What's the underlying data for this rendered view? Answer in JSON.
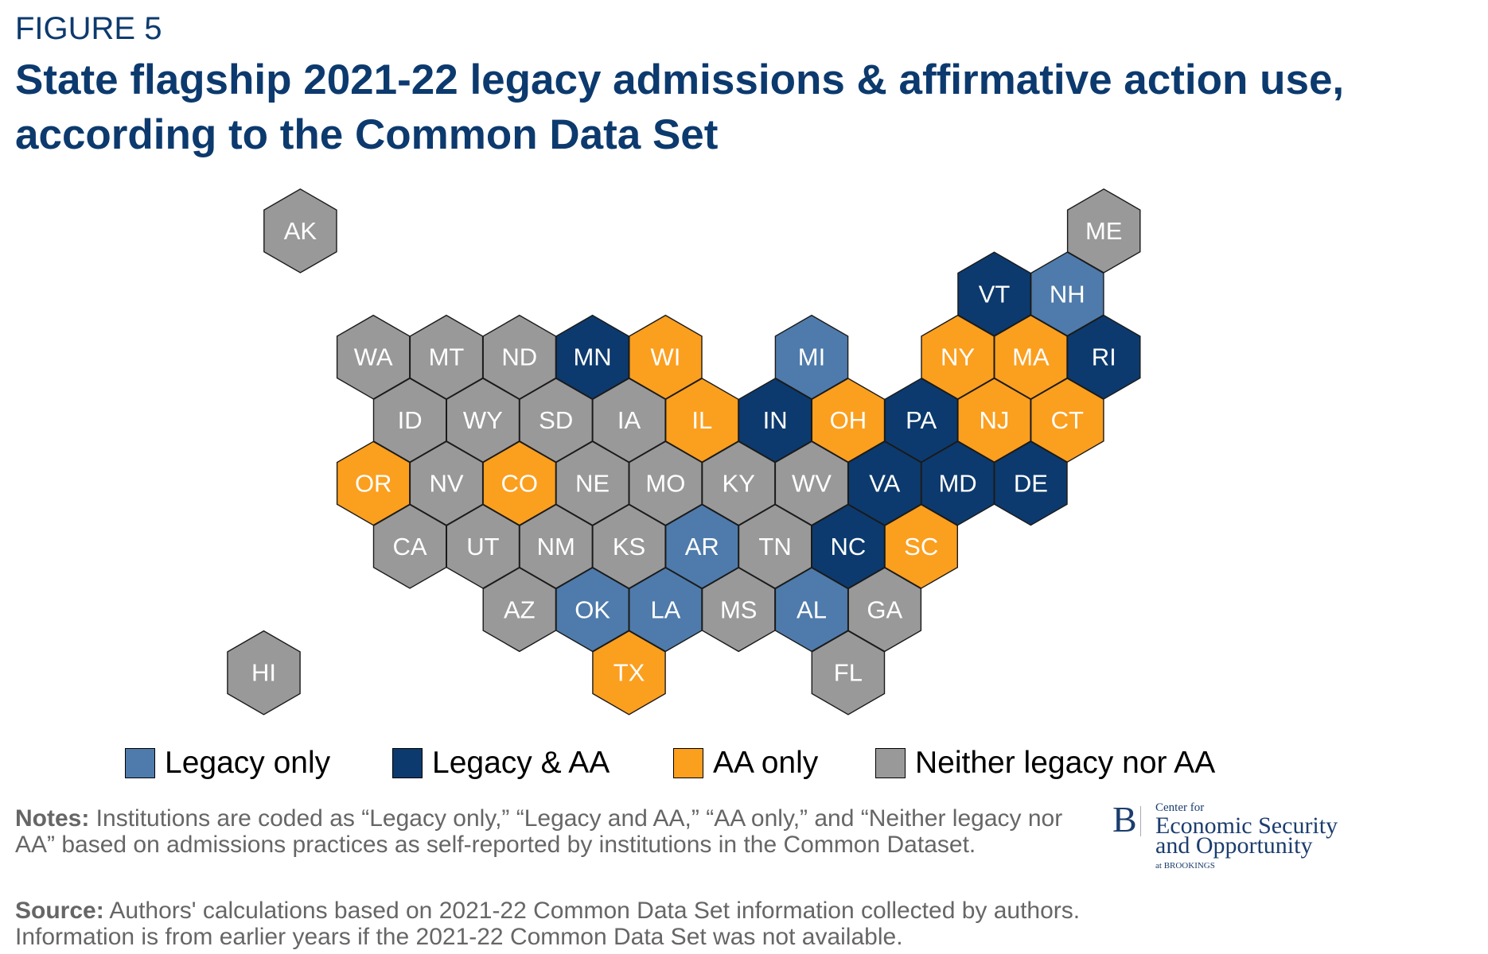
{
  "figure_label": "FIGURE 5",
  "title_line1": "State flagship 2021-22 legacy admissions & affirmative action use,",
  "title_line2": "according to the Common Data Set",
  "colors": {
    "legacy_only": "#4e7bab",
    "legacy_aa": "#0c3a6e",
    "aa_only": "#fb9f1f",
    "neither": "#999999",
    "title": "#0c3a6e"
  },
  "legend": [
    {
      "key": "legacy_only",
      "label": "Legacy only"
    },
    {
      "key": "legacy_aa",
      "label": "Legacy & AA"
    },
    {
      "key": "aa_only",
      "label": "AA only"
    },
    {
      "key": "neither",
      "label": "Neither legacy nor AA"
    }
  ],
  "states": [
    {
      "abbr": "AK",
      "row": 0,
      "col": -1,
      "cat": "neither"
    },
    {
      "abbr": "ME",
      "row": 0,
      "col": 10,
      "cat": "neither"
    },
    {
      "abbr": "VT",
      "row": 1,
      "col": 8,
      "cat": "legacy_aa"
    },
    {
      "abbr": "NH",
      "row": 1,
      "col": 9,
      "cat": "legacy_only"
    },
    {
      "abbr": "WA",
      "row": 2,
      "col": 0,
      "cat": "neither"
    },
    {
      "abbr": "MT",
      "row": 2,
      "col": 1,
      "cat": "neither"
    },
    {
      "abbr": "ND",
      "row": 2,
      "col": 2,
      "cat": "neither"
    },
    {
      "abbr": "MN",
      "row": 2,
      "col": 3,
      "cat": "legacy_aa"
    },
    {
      "abbr": "WI",
      "row": 2,
      "col": 4,
      "cat": "aa_only"
    },
    {
      "abbr": "MI",
      "row": 2,
      "col": 6,
      "cat": "legacy_only"
    },
    {
      "abbr": "NY",
      "row": 2,
      "col": 8,
      "cat": "aa_only"
    },
    {
      "abbr": "MA",
      "row": 2,
      "col": 9,
      "cat": "aa_only"
    },
    {
      "abbr": "RI",
      "row": 2,
      "col": 10,
      "cat": "legacy_aa"
    },
    {
      "abbr": "ID",
      "row": 3,
      "col": 0,
      "cat": "neither"
    },
    {
      "abbr": "WY",
      "row": 3,
      "col": 1,
      "cat": "neither"
    },
    {
      "abbr": "SD",
      "row": 3,
      "col": 2,
      "cat": "neither"
    },
    {
      "abbr": "IA",
      "row": 3,
      "col": 3,
      "cat": "neither"
    },
    {
      "abbr": "IL",
      "row": 3,
      "col": 4,
      "cat": "aa_only"
    },
    {
      "abbr": "IN",
      "row": 3,
      "col": 5,
      "cat": "legacy_aa"
    },
    {
      "abbr": "OH",
      "row": 3,
      "col": 6,
      "cat": "aa_only"
    },
    {
      "abbr": "PA",
      "row": 3,
      "col": 7,
      "cat": "legacy_aa"
    },
    {
      "abbr": "NJ",
      "row": 3,
      "col": 8,
      "cat": "aa_only"
    },
    {
      "abbr": "CT",
      "row": 3,
      "col": 9,
      "cat": "aa_only"
    },
    {
      "abbr": "OR",
      "row": 4,
      "col": 0,
      "cat": "aa_only"
    },
    {
      "abbr": "NV",
      "row": 4,
      "col": 1,
      "cat": "neither"
    },
    {
      "abbr": "CO",
      "row": 4,
      "col": 2,
      "cat": "aa_only"
    },
    {
      "abbr": "NE",
      "row": 4,
      "col": 3,
      "cat": "neither"
    },
    {
      "abbr": "MO",
      "row": 4,
      "col": 4,
      "cat": "neither"
    },
    {
      "abbr": "KY",
      "row": 4,
      "col": 5,
      "cat": "neither"
    },
    {
      "abbr": "WV",
      "row": 4,
      "col": 6,
      "cat": "neither"
    },
    {
      "abbr": "VA",
      "row": 4,
      "col": 7,
      "cat": "legacy_aa"
    },
    {
      "abbr": "MD",
      "row": 4,
      "col": 8,
      "cat": "legacy_aa"
    },
    {
      "abbr": "DE",
      "row": 4,
      "col": 9,
      "cat": "legacy_aa"
    },
    {
      "abbr": "CA",
      "row": 5,
      "col": 0,
      "cat": "neither"
    },
    {
      "abbr": "UT",
      "row": 5,
      "col": 1,
      "cat": "neither"
    },
    {
      "abbr": "NM",
      "row": 5,
      "col": 2,
      "cat": "neither"
    },
    {
      "abbr": "KS",
      "row": 5,
      "col": 3,
      "cat": "neither"
    },
    {
      "abbr": "AR",
      "row": 5,
      "col": 4,
      "cat": "legacy_only"
    },
    {
      "abbr": "TN",
      "row": 5,
      "col": 5,
      "cat": "neither"
    },
    {
      "abbr": "NC",
      "row": 5,
      "col": 6,
      "cat": "legacy_aa"
    },
    {
      "abbr": "SC",
      "row": 5,
      "col": 7,
      "cat": "aa_only"
    },
    {
      "abbr": "AZ",
      "row": 6,
      "col": 2,
      "cat": "neither"
    },
    {
      "abbr": "OK",
      "row": 6,
      "col": 3,
      "cat": "legacy_only"
    },
    {
      "abbr": "LA",
      "row": 6,
      "col": 4,
      "cat": "legacy_only"
    },
    {
      "abbr": "MS",
      "row": 6,
      "col": 5,
      "cat": "neither"
    },
    {
      "abbr": "AL",
      "row": 6,
      "col": 6,
      "cat": "legacy_only"
    },
    {
      "abbr": "GA",
      "row": 6,
      "col": 7,
      "cat": "neither"
    },
    {
      "abbr": "HI",
      "row": 7,
      "col": -2,
      "cat": "neither"
    },
    {
      "abbr": "TX",
      "row": 7,
      "col": 3,
      "cat": "aa_only"
    },
    {
      "abbr": "FL",
      "row": 7,
      "col": 6,
      "cat": "neither"
    }
  ],
  "notes": {
    "label": "Notes:",
    "text": " Institutions are coded as “Legacy only,” “Legacy and AA,” “AA only,” and “Neither legacy nor AA” based on admissions practices as self-reported by institutions in the Common Dataset."
  },
  "source": {
    "label": "Source:",
    "text": " Authors' calculations based on 2021-22 Common Data Set information collected by authors. Information is from earlier years if the 2021-22 Common Data Set was not available."
  },
  "logo": {
    "letter": "B",
    "line1": "Center for",
    "line2": "Economic Security",
    "line3": "and Opportunity",
    "line4": "at BROOKINGS"
  }
}
